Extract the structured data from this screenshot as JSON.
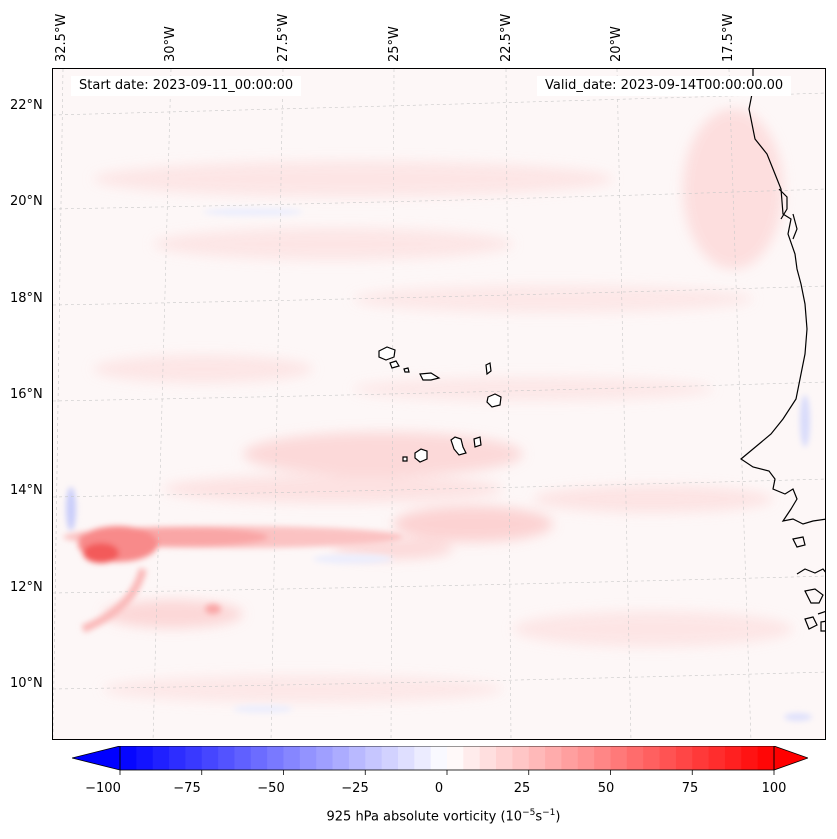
{
  "start_date": "Start date: 2023-09-11_00:00:00",
  "valid_date": "Valid_date: 2023-09-14T00:00:00.00",
  "longitude_labels": [
    "32.5°W",
    "30°W",
    "27.5°W",
    "25°W",
    "22.5°W",
    "20°W",
    "17.5°W"
  ],
  "latitude_labels": [
    "22°N",
    "20°N",
    "18°N",
    "16°N",
    "14°N",
    "12°N",
    "10°N"
  ],
  "colorbar": {
    "ticks": [
      "−100",
      "−75",
      "−50",
      "−25",
      "0",
      "25",
      "50",
      "75",
      "100"
    ],
    "min": -100,
    "max": 100,
    "title_prefix": "925 hPa absolute vorticity (10",
    "title_exp1": "−5",
    "title_mid": "s",
    "title_exp2": "−1",
    "title_suffix": ")",
    "colormap": "bwr"
  },
  "colors": {
    "coastline": "#000000",
    "gridline": "#bbbbbb",
    "max_positive": "#ff0000",
    "max_negative": "#0000ff"
  }
}
